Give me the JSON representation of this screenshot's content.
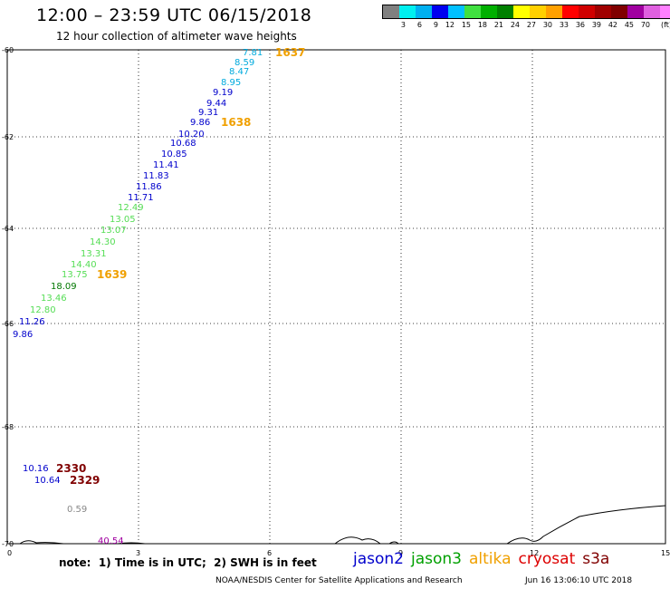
{
  "header": {
    "title": "12:00 – 23:59 UTC 06/15/2018",
    "subtitle": "12 hour collection of altimeter wave heights"
  },
  "legend": {
    "colors": [
      "#808080",
      "#00f0f0",
      "#00b0f0",
      "#0000f0",
      "#00c0ff",
      "#40e040",
      "#00b000",
      "#008000",
      "#ffff00",
      "#ffd000",
      "#ffa000",
      "#ff0000",
      "#d00000",
      "#a00000",
      "#800000",
      "#a000a0",
      "#e060e0",
      "#ff80ff",
      "#000000"
    ],
    "labels": [
      "3",
      "6",
      "9",
      "12",
      "15",
      "18",
      "21",
      "24",
      "27",
      "30",
      "33",
      "36",
      "39",
      "42",
      "45",
      "70"
    ],
    "unit": "(ft)"
  },
  "axes": {
    "x_ticks": [
      "0",
      "3",
      "6",
      "9",
      "12",
      "15"
    ],
    "y_ticks": [
      "-60",
      "-62",
      "-64",
      "-66",
      "-68",
      "-70"
    ]
  },
  "swh_labels": [
    {
      "text": "7.81",
      "color": "#00aadd"
    },
    {
      "text": "8.59",
      "color": "#00aadd"
    },
    {
      "text": "8.47",
      "color": "#00aadd"
    },
    {
      "text": "8.95",
      "color": "#00aadd"
    },
    {
      "text": "9.19",
      "color": "#0000cc"
    },
    {
      "text": "9.44",
      "color": "#0000cc"
    },
    {
      "text": "9.31",
      "color": "#0000cc"
    },
    {
      "text": "9.86",
      "color": "#0000cc"
    },
    {
      "text": "10.20",
      "color": "#0000cc"
    },
    {
      "text": "10.68",
      "color": "#0000cc"
    },
    {
      "text": "10.85",
      "color": "#0000cc"
    },
    {
      "text": "11.41",
      "color": "#0000cc"
    },
    {
      "text": "11.83",
      "color": "#0000cc"
    },
    {
      "text": "11.86",
      "color": "#0000cc"
    },
    {
      "text": "11.71",
      "color": "#0000cc"
    },
    {
      "text": "12.49",
      "color": "#55dd55"
    },
    {
      "text": "13.05",
      "color": "#55dd55"
    },
    {
      "text": "13.07",
      "color": "#55dd55"
    },
    {
      "text": "14.30",
      "color": "#55dd55"
    },
    {
      "text": "13.31",
      "color": "#55dd55"
    },
    {
      "text": "14.40",
      "color": "#55dd55"
    },
    {
      "text": "13.75",
      "color": "#55dd55"
    },
    {
      "text": "18.09",
      "color": "#007700"
    },
    {
      "text": "13.46",
      "color": "#55dd55"
    },
    {
      "text": "12.80",
      "color": "#55dd55"
    },
    {
      "text": "11.26",
      "color": "#0000cc"
    },
    {
      "text": "9.86",
      "color": "#0000cc"
    },
    {
      "text": "10.16",
      "color": "#0000cc"
    },
    {
      "text": "10.64",
      "color": "#0000cc"
    },
    {
      "text": "0.59",
      "color": "#888888"
    },
    {
      "text": "40.54",
      "color": "#a000a0"
    }
  ],
  "pass_labels": [
    {
      "text": "1637",
      "color": "#f0a000"
    },
    {
      "text": "1638",
      "color": "#f0a000"
    },
    {
      "text": "1639",
      "color": "#f0a000"
    },
    {
      "text": "2330",
      "color": "#800000"
    },
    {
      "text": "2329",
      "color": "#800000"
    }
  ],
  "footer": {
    "note": "note:  1) Time is in UTC;  2) SWH is in feet",
    "satellites": [
      {
        "name": "jason2",
        "color": "#0000cc"
      },
      {
        "name": "jason3",
        "color": "#00a000"
      },
      {
        "name": "altika",
        "color": "#f0a000"
      },
      {
        "name": "cryosat",
        "color": "#dd0000"
      },
      {
        "name": "s3a",
        "color": "#800000"
      }
    ],
    "credit": "NOAA/NESDIS Center for Satellite Applications and Research",
    "timestamp": "Jun 16 13:06:10 UTC 2018"
  }
}
